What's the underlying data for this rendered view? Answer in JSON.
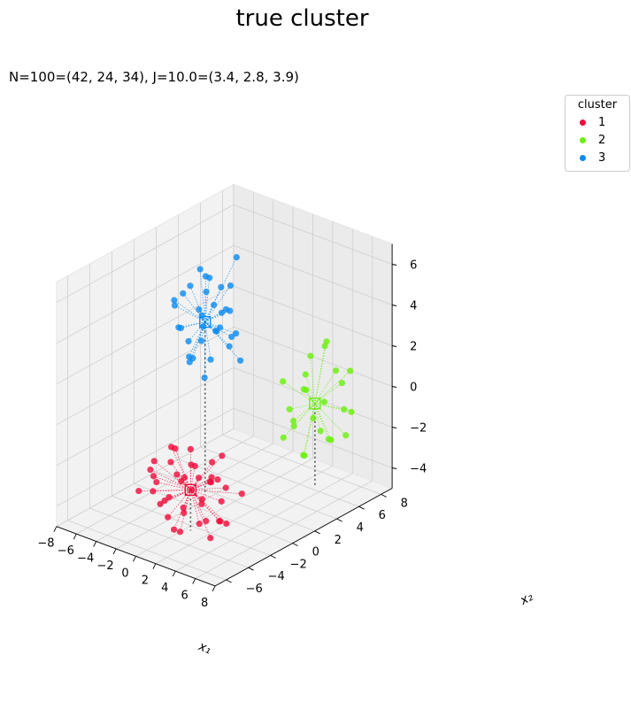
{
  "figure_title": "true cluster",
  "subtitle": "N=100=(42, 24, 34), J=10.0=(3.4, 2.8, 3.9)",
  "legend": {
    "title": "cluster",
    "items": [
      {
        "label": "1",
        "color": "#f00a3a"
      },
      {
        "label": "2",
        "color": "#69f00a"
      },
      {
        "label": "3",
        "color": "#0a8bf0"
      }
    ]
  },
  "chart_data": {
    "type": "scatter",
    "title": "true cluster",
    "subtitle": "N=100=(42, 24, 34), J=10.0=(3.4, 2.8, 3.9)",
    "projection": "3d",
    "axes": {
      "x": {
        "label": "x₁",
        "range": [
          -8,
          8
        ],
        "ticks": [
          -8,
          -6,
          -4,
          -2,
          0,
          2,
          4,
          6,
          8
        ]
      },
      "y": {
        "label": "x₂",
        "range": [
          -7,
          9
        ],
        "ticks": [
          -6,
          -4,
          -2,
          0,
          2,
          4,
          6,
          8
        ]
      },
      "z": {
        "label": "",
        "range": [
          -5,
          7
        ],
        "ticks": [
          -4,
          -2,
          0,
          2,
          4,
          6
        ]
      }
    },
    "grid": true,
    "legend_placement": "top-right",
    "series": [
      {
        "name": "1",
        "color": "#f00a3a",
        "centroid": [
          0.5,
          -2.5,
          -3.0
        ],
        "points": [
          [
            2.0,
            -2.0,
            -2.5
          ],
          [
            1.0,
            -3.5,
            -2.0
          ],
          [
            -1.0,
            -2.0,
            -3.0
          ],
          [
            -1.5,
            -4.0,
            -1.5
          ],
          [
            3.0,
            -3.0,
            -2.0
          ],
          [
            0.0,
            -1.0,
            -4.0
          ],
          [
            1.5,
            -4.0,
            -3.5
          ],
          [
            -2.0,
            -3.0,
            -4.0
          ],
          [
            2.5,
            -1.5,
            -3.5
          ],
          [
            -0.5,
            -5.0,
            -2.5
          ],
          [
            0.5,
            -2.5,
            -1.0
          ],
          [
            3.5,
            -2.5,
            -4.0
          ],
          [
            -3.0,
            -3.0,
            -2.5
          ],
          [
            1.0,
            -1.0,
            -2.0
          ],
          [
            2.0,
            -4.5,
            -3.0
          ],
          [
            -1.0,
            -3.5,
            -3.5
          ],
          [
            0.0,
            -2.0,
            -2.0
          ],
          [
            4.0,
            -1.0,
            -3.0
          ],
          [
            -2.5,
            -4.5,
            -3.0
          ],
          [
            1.5,
            -2.0,
            -4.5
          ],
          [
            3.0,
            -4.0,
            -1.5
          ],
          [
            -0.5,
            -1.5,
            -3.5
          ],
          [
            2.5,
            -3.5,
            -4.0
          ],
          [
            -1.5,
            -2.5,
            -2.0
          ],
          [
            0.5,
            -4.0,
            -4.5
          ],
          [
            1.0,
            -0.5,
            -3.0
          ],
          [
            -2.0,
            -1.5,
            -3.0
          ],
          [
            3.5,
            -2.0,
            -2.5
          ],
          [
            0.0,
            -3.0,
            -5.0
          ],
          [
            2.0,
            -1.0,
            -1.5
          ],
          [
            -1.0,
            -4.5,
            -2.0
          ],
          [
            1.5,
            -3.0,
            -1.5
          ],
          [
            -3.5,
            -2.0,
            -3.5
          ],
          [
            4.5,
            -3.5,
            -3.5
          ],
          [
            0.5,
            -1.5,
            -4.0
          ],
          [
            -0.5,
            -3.0,
            -1.0
          ],
          [
            2.5,
            -2.5,
            -5.0
          ],
          [
            1.0,
            -5.0,
            -3.5
          ],
          [
            -2.0,
            -2.0,
            -1.5
          ],
          [
            3.0,
            -1.5,
            -4.5
          ],
          [
            0.0,
            -4.0,
            -3.0
          ],
          [
            1.5,
            -1.5,
            -2.5
          ]
        ]
      },
      {
        "name": "2",
        "color": "#69f00a",
        "centroid": [
          3.0,
          6.5,
          -1.0
        ],
        "points": [
          [
            4.0,
            7.5,
            0.5
          ],
          [
            2.0,
            5.5,
            -2.0
          ],
          [
            5.0,
            8.0,
            -1.5
          ],
          [
            1.5,
            7.0,
            0.0
          ],
          [
            3.5,
            5.0,
            -3.0
          ],
          [
            2.5,
            8.0,
            1.5
          ],
          [
            4.5,
            6.0,
            -0.5
          ],
          [
            1.0,
            6.0,
            -1.5
          ],
          [
            6.0,
            7.0,
            1.0
          ],
          [
            3.0,
            7.0,
            -2.5
          ],
          [
            2.0,
            4.5,
            0.5
          ],
          [
            5.5,
            5.5,
            -2.0
          ],
          [
            3.5,
            8.5,
            -0.5
          ],
          [
            1.5,
            5.0,
            -2.5
          ],
          [
            4.0,
            6.5,
            2.0
          ],
          [
            2.5,
            6.0,
            -3.5
          ],
          [
            5.0,
            7.5,
            -2.5
          ],
          [
            3.0,
            5.5,
            0.0
          ],
          [
            1.0,
            7.5,
            -1.0
          ],
          [
            6.5,
            6.0,
            -0.5
          ],
          [
            2.0,
            7.0,
            1.0
          ],
          [
            4.5,
            5.0,
            -1.0
          ],
          [
            3.5,
            7.5,
            -3.0
          ],
          [
            2.5,
            5.0,
            -1.5
          ]
        ]
      },
      {
        "name": "3",
        "color": "#0a8bf0",
        "centroid": [
          -2.5,
          1.5,
          3.5
        ],
        "points": [
          [
            -3.0,
            2.0,
            5.5
          ],
          [
            -1.5,
            1.0,
            6.0
          ],
          [
            -4.0,
            2.5,
            2.0
          ],
          [
            -2.0,
            0.5,
            4.5
          ],
          [
            -0.5,
            2.5,
            3.0
          ],
          [
            -3.5,
            0.0,
            3.5
          ],
          [
            -1.0,
            3.0,
            6.5
          ],
          [
            -2.5,
            2.0,
            1.5
          ],
          [
            -5.0,
            1.0,
            4.0
          ],
          [
            -1.5,
            -0.5,
            2.5
          ],
          [
            0.0,
            1.5,
            4.5
          ],
          [
            -4.5,
            3.0,
            3.0
          ],
          [
            -2.0,
            2.5,
            5.0
          ],
          [
            -3.0,
            0.5,
            2.0
          ],
          [
            -1.0,
            1.5,
            3.5
          ],
          [
            -3.5,
            2.5,
            4.5
          ],
          [
            -2.5,
            -0.5,
            5.5
          ],
          [
            0.5,
            2.0,
            2.0
          ],
          [
            -4.0,
            1.5,
            5.0
          ],
          [
            -2.0,
            1.0,
            1.0
          ],
          [
            -1.5,
            3.0,
            2.5
          ],
          [
            -3.0,
            1.5,
            6.0
          ],
          [
            -0.5,
            0.5,
            5.0
          ],
          [
            -2.5,
            3.0,
            3.5
          ],
          [
            -5.5,
            2.0,
            2.5
          ],
          [
            -1.0,
            0.0,
            4.0
          ],
          [
            -3.5,
            1.0,
            1.5
          ],
          [
            -2.0,
            2.0,
            3.0
          ],
          [
            0.5,
            1.0,
            3.0
          ],
          [
            -4.5,
            0.5,
            4.5
          ],
          [
            -1.5,
            2.5,
            4.0
          ],
          [
            -3.0,
            3.0,
            2.5
          ],
          [
            -2.5,
            0.0,
            3.0
          ],
          [
            -0.5,
            2.0,
            5.5
          ]
        ]
      }
    ]
  }
}
